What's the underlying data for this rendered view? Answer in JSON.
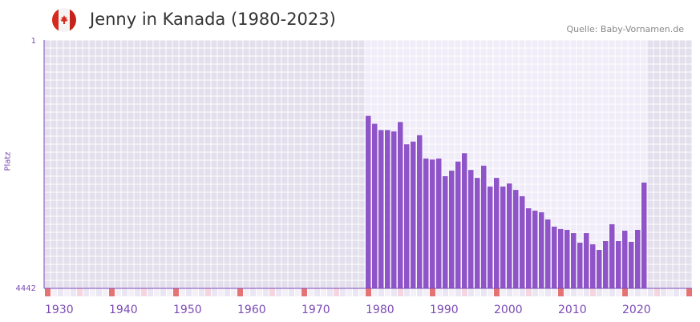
{
  "header": {
    "title": "Jenny in Kanada (1980-2023)",
    "source": "Quelle: Baby-Vornamen.de",
    "flag_icon": "canada-flag-icon"
  },
  "colors": {
    "bar": "#8e54c8",
    "axis": "#7b4bb5",
    "decade": "#e57373",
    "half": "#f5d5df",
    "bg_out": "#e3dfec",
    "bg_in": "#f0ecf8"
  },
  "chart_data": {
    "type": "bar",
    "title": "Jenny in Kanada (1980-2023)",
    "ylabel": "Platz",
    "y_scale": "log",
    "ylim": [
      4442,
      1
    ],
    "y_ticks": [
      "1",
      "4442"
    ],
    "xlim": [
      1930,
      2030
    ],
    "x_ticks": [
      "1930",
      "1940",
      "1950",
      "1960",
      "1970",
      "1980",
      "1990",
      "2000",
      "2010",
      "2020"
    ],
    "categories": [
      1980,
      1981,
      1982,
      1983,
      1984,
      1985,
      1986,
      1987,
      1988,
      1989,
      1990,
      1991,
      1992,
      1993,
      1994,
      1995,
      1996,
      1997,
      1998,
      1999,
      2000,
      2001,
      2002,
      2003,
      2004,
      2005,
      2006,
      2007,
      2008,
      2009,
      2010,
      2011,
      2012,
      2013,
      2014,
      2015,
      2016,
      2017,
      2018,
      2019,
      2020,
      2021,
      2022,
      2023
    ],
    "values": [
      13,
      17,
      21,
      21,
      22,
      16,
      34,
      31,
      25,
      55,
      57,
      55,
      100,
      83,
      61,
      46,
      81,
      106,
      70,
      142,
      106,
      142,
      128,
      159,
      197,
      296,
      321,
      339,
      432,
      551,
      598,
      615,
      686,
      949,
      686,
      1001,
      1211,
      898,
      508,
      898,
      632,
      922,
      615,
      124
    ]
  }
}
